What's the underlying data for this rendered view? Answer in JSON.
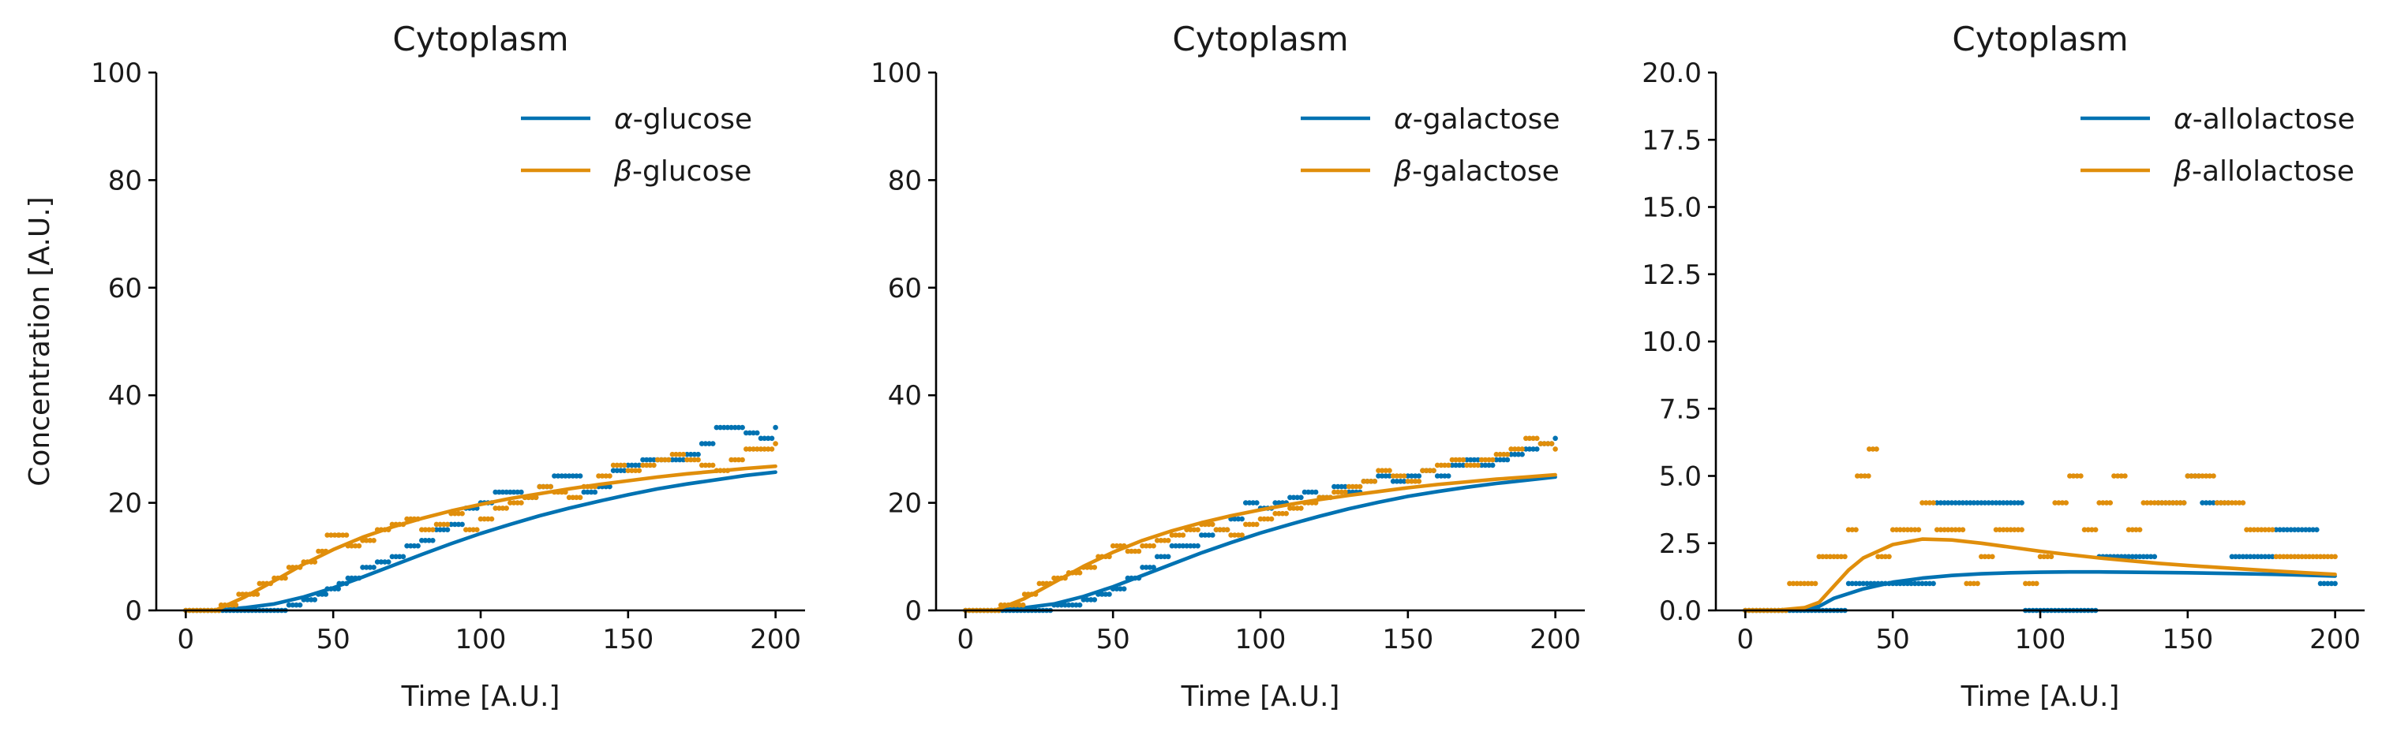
{
  "colors": {
    "alpha": "#0072B2",
    "beta": "#E08E0B"
  },
  "chart_data": [
    {
      "type": "line",
      "title": "Cytoplasm",
      "xlabel": "Time [A.U.]",
      "ylabel": "Concentration [A.U.]",
      "xlim": [
        -10,
        210
      ],
      "ylim": [
        0,
        100
      ],
      "xticks": [
        0,
        50,
        100,
        150,
        200
      ],
      "xtick_labels": [
        "0",
        "50",
        "100",
        "150",
        "200"
      ],
      "yticks": [
        0,
        20,
        40,
        60,
        80,
        100
      ],
      "ytick_labels": [
        "0",
        "20",
        "40",
        "60",
        "80",
        "100"
      ],
      "legend_position": "top-right",
      "series": [
        {
          "key": "alpha",
          "name": "α-glucose",
          "legend_prefix": "α",
          "legend_suffix": "-glucose",
          "line": {
            "x": [
              0,
              10,
              20,
              30,
              40,
              50,
              60,
              70,
              80,
              90,
              100,
              110,
              120,
              130,
              140,
              150,
              160,
              170,
              180,
              190,
              200
            ],
            "y": [
              0,
              0,
              0.5,
              1.2,
              2.5,
              4.2,
              6.2,
              8.3,
              10.4,
              12.4,
              14.3,
              16,
              17.6,
              19,
              20.3,
              21.5,
              22.6,
              23.5,
              24.3,
              25.1,
              25.7
            ]
          },
          "steps": {
            "x": [
              0,
              20,
              35,
              40,
              45,
              48,
              52,
              55,
              60,
              65,
              70,
              75,
              80,
              85,
              90,
              95,
              100,
              105,
              110,
              115,
              120,
              125,
              130,
              135,
              140,
              145,
              150,
              155,
              160,
              165,
              170,
              175,
              180,
              185,
              190,
              195,
              200
            ],
            "y": [
              0,
              0,
              1,
              2,
              3,
              4,
              5,
              6,
              8,
              9,
              10,
              12,
              13,
              15,
              16,
              19,
              20,
              22,
              22,
              21,
              23,
              25,
              25,
              22,
              23,
              26,
              27,
              28,
              28,
              28,
              29,
              31,
              34,
              34,
              33,
              32,
              34
            ]
          }
        },
        {
          "key": "beta",
          "name": "β-glucose",
          "legend_prefix": "β",
          "legend_suffix": "-glucose",
          "line": {
            "x": [
              0,
              10,
              20,
              30,
              40,
              50,
              60,
              70,
              80,
              90,
              100,
              110,
              120,
              130,
              140,
              150,
              160,
              170,
              180,
              190,
              200
            ],
            "y": [
              0,
              0,
              2.5,
              5.5,
              8.6,
              11.3,
              13.6,
              15.5,
              17.1,
              18.5,
              19.7,
              20.8,
              21.7,
              22.6,
              23.4,
              24.1,
              24.8,
              25.4,
              25.9,
              26.4,
              26.8
            ]
          },
          "steps": {
            "x": [
              0,
              12,
              18,
              25,
              30,
              35,
              40,
              45,
              48,
              52,
              55,
              60,
              65,
              70,
              75,
              80,
              85,
              90,
              95,
              100,
              105,
              110,
              115,
              120,
              125,
              130,
              135,
              140,
              145,
              150,
              155,
              160,
              165,
              170,
              175,
              180,
              185,
              190,
              195,
              200
            ],
            "y": [
              0,
              1,
              3,
              5,
              6,
              8,
              9,
              11,
              14,
              14,
              12,
              13,
              15,
              16,
              17,
              15,
              16,
              18,
              15,
              17,
              19,
              20,
              21,
              23,
              22,
              21,
              23,
              25,
              27,
              26,
              27,
              28,
              29,
              28,
              27,
              26,
              28,
              30,
              30,
              31
            ]
          }
        }
      ]
    },
    {
      "type": "line",
      "title": "Cytoplasm",
      "xlabel": "Time [A.U.]",
      "ylabel": "",
      "xlim": [
        -10,
        210
      ],
      "ylim": [
        0,
        100
      ],
      "xticks": [
        0,
        50,
        100,
        150,
        200
      ],
      "xtick_labels": [
        "0",
        "50",
        "100",
        "150",
        "200"
      ],
      "yticks": [
        0,
        20,
        40,
        60,
        80,
        100
      ],
      "ytick_labels": [
        "0",
        "20",
        "40",
        "60",
        "80",
        "100"
      ],
      "legend_position": "top-right",
      "series": [
        {
          "key": "alpha",
          "name": "α-galactose",
          "legend_prefix": "α",
          "legend_suffix": "-galactose",
          "line": {
            "x": [
              0,
              10,
              20,
              30,
              40,
              50,
              60,
              70,
              80,
              90,
              100,
              110,
              120,
              130,
              140,
              150,
              160,
              170,
              180,
              190,
              200
            ],
            "y": [
              0,
              0,
              0.5,
              1.2,
              2.6,
              4.4,
              6.5,
              8.6,
              10.7,
              12.6,
              14.4,
              16,
              17.5,
              18.9,
              20.1,
              21.2,
              22.1,
              22.9,
              23.6,
              24.2,
              24.8
            ]
          },
          "steps": {
            "x": [
              0,
              20,
              30,
              35,
              40,
              45,
              50,
              55,
              60,
              65,
              70,
              75,
              80,
              85,
              90,
              95,
              100,
              105,
              110,
              115,
              120,
              125,
              130,
              135,
              140,
              145,
              150,
              155,
              160,
              165,
              170,
              175,
              180,
              185,
              190,
              195,
              200
            ],
            "y": [
              0,
              0,
              1,
              1,
              2,
              3,
              4,
              6,
              8,
              10,
              12,
              12,
              14,
              15,
              17,
              20,
              19,
              20,
              21,
              22,
              21,
              23,
              22,
              24,
              25,
              24,
              25,
              26,
              25,
              27,
              28,
              27,
              28,
              29,
              30,
              31,
              32
            ]
          }
        },
        {
          "key": "beta",
          "name": "β-galactose",
          "legend_prefix": "β",
          "legend_suffix": "-galactose",
          "line": {
            "x": [
              0,
              10,
              20,
              30,
              40,
              50,
              60,
              70,
              80,
              90,
              100,
              110,
              120,
              130,
              140,
              150,
              160,
              170,
              180,
              190,
              200
            ],
            "y": [
              0,
              0,
              2.2,
              5.2,
              8.2,
              10.8,
              13,
              14.8,
              16.3,
              17.6,
              18.7,
              19.7,
              20.6,
              21.4,
              22.1,
              22.8,
              23.4,
              23.9,
              24.4,
              24.8,
              25.2
            ]
          },
          "steps": {
            "x": [
              0,
              12,
              20,
              25,
              30,
              35,
              40,
              45,
              50,
              55,
              60,
              65,
              70,
              75,
              80,
              85,
              90,
              95,
              100,
              105,
              110,
              115,
              120,
              125,
              130,
              135,
              140,
              145,
              150,
              155,
              160,
              165,
              170,
              175,
              180,
              185,
              190,
              195,
              200
            ],
            "y": [
              0,
              1,
              3,
              5,
              6,
              7,
              8,
              10,
              12,
              11,
              12,
              13,
              14,
              15,
              16,
              15,
              14,
              16,
              17,
              18,
              19,
              20,
              21,
              22,
              23,
              24,
              26,
              25,
              24,
              26,
              27,
              28,
              27,
              28,
              29,
              30,
              32,
              31,
              30
            ]
          }
        }
      ]
    },
    {
      "type": "line",
      "title": "Cytoplasm",
      "xlabel": "Time [A.U.]",
      "ylabel": "",
      "xlim": [
        -10,
        210
      ],
      "ylim": [
        0,
        20
      ],
      "xticks": [
        0,
        50,
        100,
        150,
        200
      ],
      "xtick_labels": [
        "0",
        "50",
        "100",
        "150",
        "200"
      ],
      "yticks": [
        0,
        2.5,
        5,
        7.5,
        10,
        12.5,
        15,
        17.5,
        20
      ],
      "ytick_labels": [
        "0.0",
        "2.5",
        "5.0",
        "7.5",
        "10.0",
        "12.5",
        "15.0",
        "17.5",
        "20.0"
      ],
      "legend_position": "top-right",
      "series": [
        {
          "key": "alpha",
          "name": "α-allolactose",
          "legend_prefix": "α",
          "legend_suffix": "-allolactose",
          "line": {
            "x": [
              0,
              10,
              20,
              25,
              30,
              40,
              50,
              60,
              70,
              80,
              90,
              100,
              110,
              120,
              130,
              140,
              150,
              160,
              170,
              180,
              190,
              200
            ],
            "y": [
              0,
              0,
              0.05,
              0.15,
              0.45,
              0.8,
              1.05,
              1.2,
              1.3,
              1.36,
              1.4,
              1.42,
              1.43,
              1.43,
              1.42,
              1.41,
              1.4,
              1.38,
              1.36,
              1.34,
              1.31,
              1.28
            ]
          },
          "steps": {
            "x": [
              0,
              25,
              30,
              35,
              40,
              45,
              50,
              55,
              60,
              65,
              70,
              75,
              80,
              85,
              90,
              95,
              100,
              105,
              110,
              115,
              120,
              125,
              130,
              135,
              140,
              145,
              150,
              155,
              160,
              165,
              170,
              175,
              180,
              185,
              190,
              195,
              200
            ],
            "y": [
              0,
              0,
              0,
              1,
              1,
              1,
              1,
              1,
              1,
              4,
              4,
              4,
              4,
              4,
              4,
              0,
              0,
              0,
              0,
              0,
              2,
              2,
              2,
              2,
              4,
              4,
              5,
              4,
              4,
              2,
              2,
              2,
              3,
              3,
              3,
              1,
              1
            ]
          }
        },
        {
          "key": "beta",
          "name": "β-allolactose",
          "legend_prefix": "β",
          "legend_suffix": "-allolactose",
          "line": {
            "x": [
              0,
              10,
              20,
              25,
              30,
              35,
              40,
              50,
              60,
              70,
              80,
              90,
              100,
              110,
              120,
              130,
              140,
              150,
              160,
              170,
              180,
              190,
              200
            ],
            "y": [
              0,
              0,
              0.1,
              0.3,
              0.9,
              1.5,
              1.95,
              2.45,
              2.65,
              2.62,
              2.5,
              2.35,
              2.2,
              2.07,
              1.95,
              1.85,
              1.75,
              1.67,
              1.6,
              1.53,
              1.46,
              1.4,
              1.34
            ]
          },
          "steps": {
            "x": [
              0,
              15,
              20,
              25,
              30,
              35,
              38,
              42,
              45,
              50,
              55,
              60,
              65,
              70,
              75,
              80,
              85,
              90,
              95,
              100,
              105,
              110,
              115,
              120,
              125,
              130,
              135,
              140,
              145,
              150,
              155,
              160,
              165,
              170,
              175,
              180,
              185,
              190,
              195,
              200
            ],
            "y": [
              0,
              1,
              1,
              2,
              2,
              3,
              5,
              6,
              2,
              3,
              3,
              4,
              3,
              3,
              1,
              2,
              3,
              3,
              1,
              2,
              4,
              5,
              3,
              4,
              5,
              3,
              4,
              4,
              4,
              5,
              5,
              4,
              4,
              3,
              3,
              2,
              2,
              2,
              2,
              2
            ]
          }
        }
      ]
    }
  ]
}
